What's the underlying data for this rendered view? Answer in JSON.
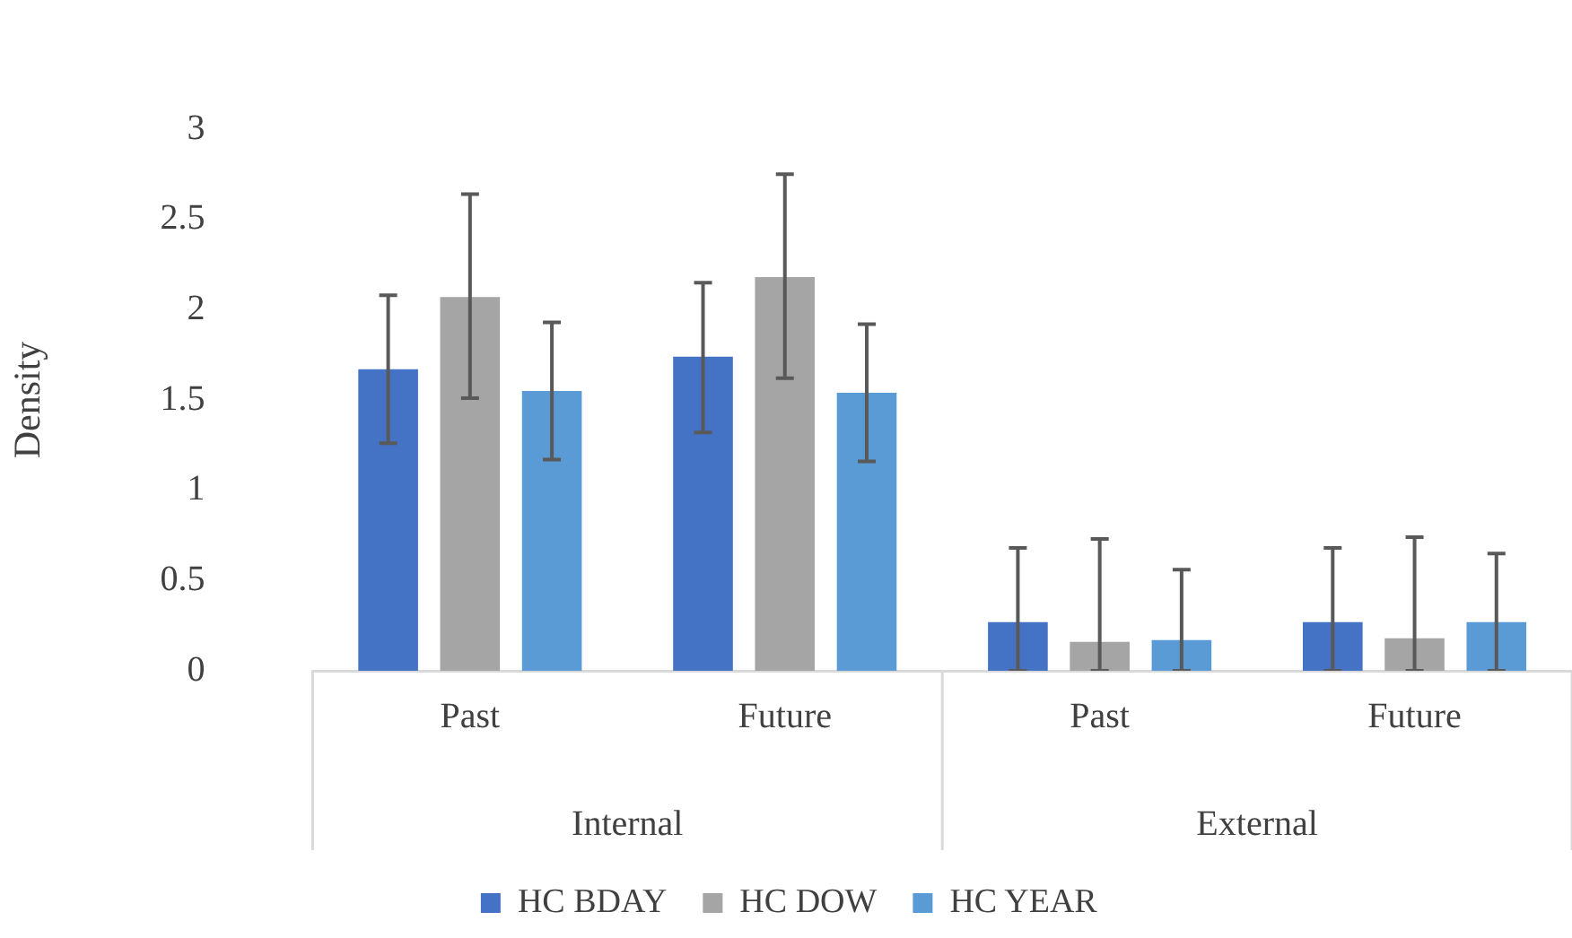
{
  "chart_data": {
    "type": "bar",
    "ylabel": "Density",
    "categories": [
      "Past",
      "Future",
      "Past",
      "Future"
    ],
    "annotations": [
      "Internal",
      "External"
    ],
    "series": [
      {
        "name": "HC BDAY",
        "color": "#4472c4",
        "values": [
          1.67,
          1.74,
          0.27,
          0.27
        ],
        "errors": [
          [
            1.26,
            2.08
          ],
          [
            1.32,
            2.15
          ],
          [
            0,
            0.68
          ],
          [
            0,
            0.68
          ]
        ]
      },
      {
        "name": "HC DOW",
        "color": "#a5a5a5",
        "values": [
          2.07,
          2.18,
          0.16,
          0.18
        ],
        "errors": [
          [
            1.51,
            2.64
          ],
          [
            1.62,
            2.75
          ],
          [
            0,
            0.73
          ],
          [
            0,
            0.74
          ]
        ]
      },
      {
        "name": "HC YEAR",
        "color": "#5b9bd5",
        "values": [
          1.55,
          1.54,
          0.17,
          0.27
        ],
        "errors": [
          [
            1.17,
            1.93
          ],
          [
            1.16,
            1.92
          ],
          [
            0,
            0.56
          ],
          [
            0,
            0.65
          ]
        ]
      }
    ],
    "ylim": [
      0,
      3
    ],
    "yticks": [
      0,
      0.5,
      1,
      1.5,
      2,
      2.5,
      3
    ],
    "grid": false,
    "legend": "bottom"
  }
}
